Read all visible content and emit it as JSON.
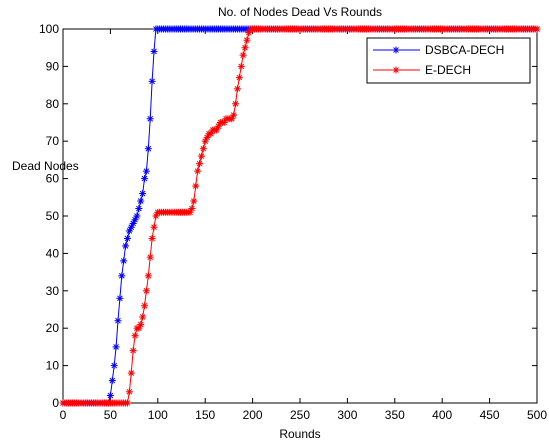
{
  "chart_data": {
    "type": "line",
    "title": "No. of Nodes Dead Vs Rounds",
    "xlabel": "Rounds",
    "ylabel": "Dead Nodes",
    "xlim": [
      0,
      500
    ],
    "ylim": [
      0,
      100
    ],
    "xticks": [
      "0",
      "50",
      "100",
      "150",
      "200",
      "250",
      "300",
      "350",
      "400",
      "450",
      "500"
    ],
    "yticks": [
      "0",
      "10",
      "20",
      "30",
      "40",
      "50",
      "60",
      "70",
      "80",
      "90",
      "100"
    ],
    "grid": false,
    "legend_position": "top-right",
    "marker": "star",
    "series": [
      {
        "name": "DSBCA-DECH",
        "color": "#0000ff",
        "points": [
          [
            0,
            0
          ],
          [
            20,
            0
          ],
          [
            40,
            0
          ],
          [
            48,
            0
          ],
          [
            50,
            2
          ],
          [
            52,
            6
          ],
          [
            54,
            10
          ],
          [
            56,
            15
          ],
          [
            58,
            22
          ],
          [
            60,
            28
          ],
          [
            62,
            34
          ],
          [
            64,
            38
          ],
          [
            66,
            42
          ],
          [
            68,
            44
          ],
          [
            70,
            46
          ],
          [
            72,
            47
          ],
          [
            74,
            48
          ],
          [
            76,
            49
          ],
          [
            78,
            50
          ],
          [
            80,
            52
          ],
          [
            82,
            54
          ],
          [
            84,
            56
          ],
          [
            86,
            60
          ],
          [
            88,
            62
          ],
          [
            90,
            68
          ],
          [
            92,
            76
          ],
          [
            94,
            86
          ],
          [
            96,
            94
          ],
          [
            98,
            100
          ],
          [
            100,
            100
          ],
          [
            150,
            100
          ],
          [
            200,
            100
          ],
          [
            250,
            100
          ],
          [
            300,
            100
          ],
          [
            350,
            100
          ],
          [
            400,
            100
          ],
          [
            450,
            100
          ],
          [
            500,
            100
          ]
        ]
      },
      {
        "name": "E-DECH",
        "color": "#ff0000",
        "points": [
          [
            0,
            0
          ],
          [
            30,
            0
          ],
          [
            60,
            0
          ],
          [
            68,
            0
          ],
          [
            70,
            3
          ],
          [
            72,
            8
          ],
          [
            74,
            14
          ],
          [
            76,
            18
          ],
          [
            78,
            20
          ],
          [
            80,
            20
          ],
          [
            82,
            21
          ],
          [
            84,
            23
          ],
          [
            86,
            26
          ],
          [
            88,
            30
          ],
          [
            90,
            34
          ],
          [
            92,
            39
          ],
          [
            94,
            44
          ],
          [
            96,
            47
          ],
          [
            98,
            50
          ],
          [
            100,
            51
          ],
          [
            110,
            51
          ],
          [
            120,
            51
          ],
          [
            130,
            51
          ],
          [
            134,
            51
          ],
          [
            136,
            52
          ],
          [
            138,
            54
          ],
          [
            140,
            58
          ],
          [
            142,
            62
          ],
          [
            144,
            64
          ],
          [
            146,
            66
          ],
          [
            148,
            68
          ],
          [
            150,
            70
          ],
          [
            152,
            71
          ],
          [
            154,
            72
          ],
          [
            156,
            72
          ],
          [
            158,
            73
          ],
          [
            160,
            73
          ],
          [
            162,
            73
          ],
          [
            164,
            74
          ],
          [
            166,
            75
          ],
          [
            168,
            75
          ],
          [
            170,
            75
          ],
          [
            172,
            76
          ],
          [
            174,
            76
          ],
          [
            176,
            76
          ],
          [
            178,
            76
          ],
          [
            180,
            77
          ],
          [
            182,
            80
          ],
          [
            184,
            84
          ],
          [
            186,
            87
          ],
          [
            188,
            90
          ],
          [
            190,
            93
          ],
          [
            192,
            95
          ],
          [
            194,
            97
          ],
          [
            196,
            99
          ],
          [
            198,
            100
          ],
          [
            200,
            100
          ],
          [
            250,
            100
          ],
          [
            300,
            100
          ],
          [
            350,
            100
          ],
          [
            400,
            100
          ],
          [
            450,
            100
          ],
          [
            500,
            100
          ]
        ]
      }
    ]
  }
}
